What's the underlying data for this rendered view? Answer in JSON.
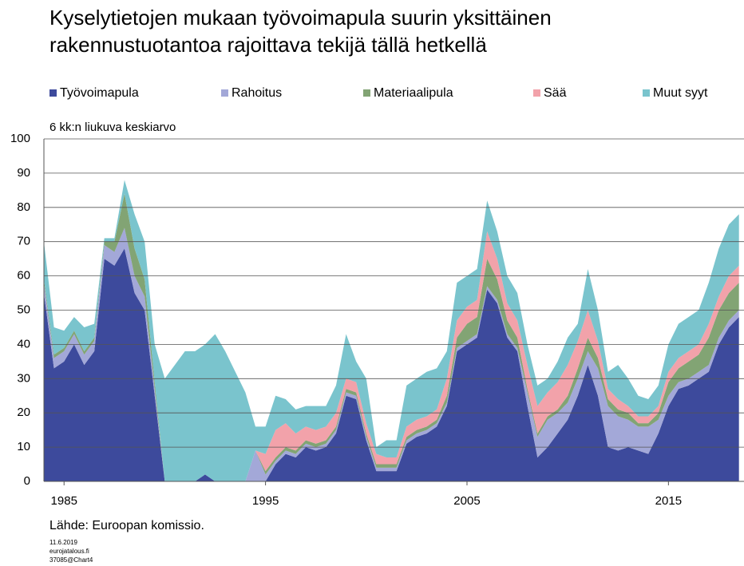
{
  "chart_data": {
    "type": "stacked_area",
    "title": [
      "Kyselytietojen mukaan työvoimapula suurin yksittäinen",
      "rakennustuotantoa rajoittava tekijä tällä hetkellä"
    ],
    "y_label": "6 kk:n liukuva keskiarvo",
    "source": "Lähde: Euroopan komissio.",
    "footnote": [
      "11.6.2019",
      "eurojatalous.fi",
      "37085@Chart4"
    ],
    "x": [
      1984,
      1984.5,
      1985,
      1985.5,
      1986,
      1986.5,
      1987,
      1987.5,
      1988,
      1988.5,
      1989,
      1989.5,
      1990,
      1990.5,
      1991,
      1991.5,
      1992,
      1992.5,
      1993,
      1993.5,
      1994,
      1994.5,
      1995,
      1995.5,
      1996,
      1996.5,
      1997,
      1997.5,
      1998,
      1998.5,
      1999,
      1999.5,
      2000,
      2000.5,
      2001,
      2001.5,
      2002,
      2002.5,
      2003,
      2003.5,
      2004,
      2004.5,
      2005,
      2005.5,
      2006,
      2006.5,
      2007,
      2007.5,
      2008,
      2008.5,
      2009,
      2009.5,
      2010,
      2010.5,
      2011,
      2011.5,
      2012,
      2012.5,
      2013,
      2013.5,
      2014,
      2014.5,
      2015,
      2015.5,
      2016,
      2016.5,
      2017,
      2017.5,
      2018,
      2018.5
    ],
    "series": [
      {
        "name": "Työvoimapula",
        "color": "#3d4a9c",
        "values": [
          55,
          33,
          35,
          40,
          34,
          38,
          65,
          63,
          68,
          55,
          50,
          25,
          0,
          0,
          0,
          0,
          2,
          0,
          0,
          0,
          0,
          0,
          0,
          5,
          8,
          7,
          10,
          9,
          10,
          14,
          25,
          24,
          12,
          3,
          3,
          3,
          11,
          13,
          14,
          16,
          22,
          38,
          40,
          42,
          56,
          52,
          42,
          38,
          22,
          7,
          10,
          14,
          18,
          25,
          34,
          25,
          10,
          9,
          10,
          9,
          8,
          14,
          22,
          27,
          28,
          30,
          32,
          40,
          45,
          48
        ]
      },
      {
        "name": "Rahoitus",
        "color": "#a3a8d8",
        "values": [
          3,
          3,
          3,
          3,
          3,
          3,
          4,
          4,
          6,
          5,
          4,
          2,
          0,
          0,
          0,
          0,
          0,
          0,
          0,
          0,
          0,
          9,
          2,
          1,
          1,
          1,
          1,
          1,
          1,
          1,
          1,
          1,
          1,
          1,
          1,
          1,
          1,
          1,
          1,
          1,
          1,
          1,
          1,
          1,
          1,
          1,
          1,
          1,
          4,
          6,
          8,
          6,
          5,
          5,
          4,
          8,
          12,
          10,
          8,
          7,
          8,
          4,
          3,
          2,
          2,
          2,
          2,
          2,
          2,
          2
        ]
      },
      {
        "name": "Materiaalipula",
        "color": "#82a474",
        "values": [
          1,
          1,
          1,
          1,
          1,
          1,
          1,
          3,
          10,
          8,
          5,
          2,
          0,
          0,
          0,
          0,
          0,
          0,
          0,
          0,
          0,
          0,
          1,
          1,
          1,
          1,
          1,
          1,
          1,
          1,
          1,
          1,
          1,
          1,
          1,
          1,
          1,
          1,
          1,
          1,
          2,
          3,
          5,
          5,
          8,
          6,
          4,
          3,
          1,
          1,
          1,
          1,
          2,
          3,
          4,
          3,
          2,
          2,
          2,
          1,
          1,
          2,
          4,
          4,
          5,
          5,
          8,
          8,
          8,
          8
        ]
      },
      {
        "name": "Sää",
        "color": "#f2a2aa",
        "values": [
          0,
          0,
          0,
          0,
          0,
          0,
          0,
          0,
          0,
          0,
          0,
          0,
          0,
          0,
          0,
          0,
          0,
          0,
          0,
          0,
          0,
          0,
          5,
          8,
          7,
          5,
          4,
          4,
          4,
          4,
          3,
          3,
          3,
          3,
          2,
          2,
          3,
          3,
          3,
          3,
          5,
          5,
          5,
          5,
          8,
          6,
          5,
          5,
          7,
          8,
          7,
          8,
          9,
          8,
          8,
          5,
          3,
          3,
          2,
          2,
          2,
          2,
          3,
          3,
          3,
          3,
          4,
          4,
          5,
          5
        ]
      },
      {
        "name": "Muut syyt",
        "color": "#7ac4cd",
        "values": [
          11,
          8,
          5,
          4,
          7,
          4,
          1,
          1,
          4,
          10,
          11,
          11,
          30,
          34,
          38,
          38,
          38,
          43,
          38,
          32,
          26,
          7,
          8,
          10,
          7,
          7,
          6,
          7,
          6,
          8,
          13,
          6,
          13,
          2,
          5,
          5,
          12,
          12,
          13,
          12,
          8,
          11,
          9,
          9,
          9,
          8,
          8,
          8,
          6,
          6,
          4,
          6,
          8,
          5,
          12,
          9,
          5,
          10,
          8,
          6,
          5,
          6,
          8,
          10,
          10,
          10,
          12,
          14,
          15,
          15
        ]
      }
    ],
    "xlim": [
      1984,
      2018.75
    ],
    "xticks": [
      1985,
      1995,
      2005,
      2015
    ],
    "ylim": [
      0,
      100
    ],
    "yticks": [
      0,
      10,
      20,
      30,
      40,
      50,
      60,
      70,
      80,
      90,
      100
    ],
    "grid": true
  }
}
